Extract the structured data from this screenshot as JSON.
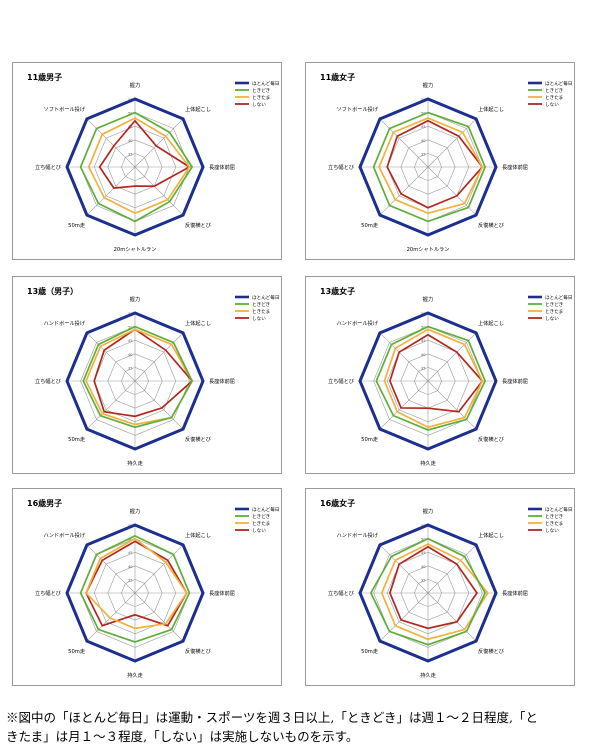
{
  "chart_data": [
    {
      "type": "radar",
      "title": "11歳男子",
      "axes": [
        "握力",
        "上体起こし",
        "長座体前屈",
        "反復横とび",
        "20mシャトルラン",
        "50m走",
        "立ち幅とび",
        "ソフトボール投げ"
      ],
      "tick_labels": [
        "55",
        "50",
        "45",
        "40",
        "35"
      ],
      "series": [
        {
          "name": "ほとんど毎日",
          "values": [
            55,
            55,
            55,
            55,
            55,
            55,
            55,
            55
          ]
        },
        {
          "name": "ときどき",
          "values": [
            50,
            48,
            51,
            48,
            50,
            49,
            50,
            50
          ]
        },
        {
          "name": "ときたま",
          "values": [
            48,
            46,
            50,
            47,
            47,
            46,
            47,
            47
          ]
        },
        {
          "name": "しない",
          "values": [
            47,
            41,
            50,
            40,
            37,
            41,
            43,
            41
          ]
        }
      ]
    },
    {
      "type": "radar",
      "title": "11歳女子",
      "axes": [
        "握力",
        "上体起こし",
        "長座体前屈",
        "反復横とび",
        "20mシャトルラン",
        "50m走",
        "立ち幅とび",
        "ソフトボール投げ"
      ],
      "tick_labels": [
        "55",
        "50",
        "45",
        "40",
        "35"
      ],
      "series": [
        {
          "name": "ほとんど毎日",
          "values": [
            55,
            55,
            55,
            55,
            55,
            55,
            55,
            55
          ]
        },
        {
          "name": "ときどき",
          "values": [
            50,
            51,
            51,
            51,
            50,
            50,
            50,
            50
          ]
        },
        {
          "name": "ときたま",
          "values": [
            48,
            48,
            50,
            49,
            47,
            47,
            48,
            48
          ]
        },
        {
          "name": "しない",
          "values": [
            47,
            46,
            50,
            45,
            45,
            44,
            45,
            46
          ]
        }
      ]
    },
    {
      "type": "radar",
      "title": "13歳（男子）",
      "axes": [
        "握力",
        "上体起こし",
        "長座体前屈",
        "反復横とび",
        "持久走",
        "50m走",
        "立ち幅とび",
        "ハンドボール投げ"
      ],
      "tick_labels": [
        "55",
        "50",
        "45",
        "40",
        "35"
      ],
      "series": [
        {
          "name": "ほとんど毎日",
          "values": [
            55,
            55,
            55,
            55,
            55,
            55,
            55,
            55
          ]
        },
        {
          "name": "ときどき",
          "values": [
            50,
            50,
            51,
            49,
            47,
            48,
            49,
            49
          ]
        },
        {
          "name": "ときたま",
          "values": [
            49,
            49,
            51,
            49,
            46,
            47,
            48,
            48
          ]
        },
        {
          "name": "しない",
          "values": [
            49,
            46,
            51,
            44,
            43,
            46,
            45,
            46
          ]
        }
      ]
    },
    {
      "type": "radar",
      "title": "13歳女子",
      "axes": [
        "握力",
        "上体起こし",
        "長座体前屈",
        "反復横とび",
        "持久走",
        "50m走",
        "立ち幅とび",
        "ハンドボール投げ"
      ],
      "tick_labels": [
        "55",
        "50",
        "45",
        "40",
        "35"
      ],
      "series": [
        {
          "name": "ほとんど毎日",
          "values": [
            55,
            55,
            55,
            55,
            55,
            55,
            55,
            55
          ]
        },
        {
          "name": "ときどき",
          "values": [
            50,
            51,
            51,
            50,
            48,
            48,
            49,
            49
          ]
        },
        {
          "name": "ときたま",
          "values": [
            49,
            49,
            50,
            49,
            47,
            46,
            46,
            47
          ]
        },
        {
          "name": "しない",
          "values": [
            47,
            45,
            50,
            46,
            40,
            44,
            44,
            45
          ]
        }
      ]
    },
    {
      "type": "radar",
      "title": "16歳男子",
      "axes": [
        "握力",
        "上体起こし",
        "長座体前屈",
        "反復横とび",
        "持久走",
        "50m走",
        "立ち幅とび",
        "ハンドボール投げ"
      ],
      "tick_labels": [
        "55",
        "50",
        "45",
        "40",
        "35"
      ],
      "series": [
        {
          "name": "ほとんど毎日",
          "values": [
            55,
            55,
            55,
            55,
            55,
            55,
            55,
            55
          ]
        },
        {
          "name": "ときどき",
          "values": [
            51,
            50,
            50,
            49,
            48,
            49,
            50,
            50
          ]
        },
        {
          "name": "ときたま",
          "values": [
            50,
            46,
            49,
            46,
            43,
            43,
            48,
            48
          ]
        },
        {
          "name": "しない",
          "values": [
            49,
            47,
            49,
            47,
            38,
            47,
            48,
            47
          ]
        }
      ]
    },
    {
      "type": "radar",
      "title": "16歳女子",
      "axes": [
        "握力",
        "上体起こし",
        "長座体前屈",
        "反復横とび",
        "持久走",
        "50m走",
        "立ち幅とび",
        "ハンドボール投げ"
      ],
      "tick_labels": [
        "55",
        "50",
        "45",
        "40",
        "35"
      ],
      "series": [
        {
          "name": "ほとんど毎日",
          "values": [
            55,
            55,
            55,
            55,
            55,
            55,
            55,
            55
          ]
        },
        {
          "name": "ときどき",
          "values": [
            50,
            49,
            51,
            50,
            49,
            50,
            51,
            49
          ]
        },
        {
          "name": "ときたま",
          "values": [
            48,
            47,
            52,
            49,
            47,
            47,
            47,
            47
          ]
        },
        {
          "name": "しない",
          "values": [
            47,
            45,
            48,
            45,
            43,
            44,
            44,
            45
          ]
        }
      ]
    }
  ],
  "series_colors": [
    "#1c2f8f",
    "#5fae3a",
    "#f2b13c",
    "#b3261e"
  ],
  "footnote": {
    "line1": "※図中の「ほとんど毎日」は運動・スポーツを週３日以上,「ときどき」は週１～２日程度,「と",
    "line2": "きたま」は月１～３程度,「しない」は実施しないものを示す。"
  }
}
